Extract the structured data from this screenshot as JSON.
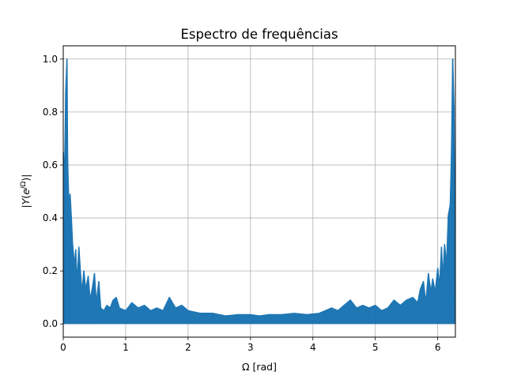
{
  "chart_data": {
    "type": "line",
    "title": "Espectro de frequências",
    "xlabel": "Ω [rad]",
    "ylabel": "|Y(e^{jΩ})|",
    "xlim": [
      0,
      6.283
    ],
    "ylim": [
      -0.05,
      1.05
    ],
    "x_ticks": [
      0,
      1,
      2,
      3,
      4,
      5,
      6
    ],
    "x_tick_labels": [
      "0",
      "1",
      "2",
      "3",
      "4",
      "5",
      "6"
    ],
    "y_ticks": [
      0.0,
      0.2,
      0.4,
      0.6,
      0.8,
      1.0
    ],
    "y_tick_labels": [
      "0.0",
      "0.2",
      "0.4",
      "0.6",
      "0.8",
      "1.0"
    ],
    "grid": true,
    "legend": "none",
    "colors": {
      "series": "#1f77b4",
      "grid": "#b0b0b0"
    },
    "series": [
      {
        "x": [
          0.0,
          0.02,
          0.04,
          0.06,
          0.07,
          0.09,
          0.11,
          0.13,
          0.15,
          0.18,
          0.2,
          0.22,
          0.25,
          0.28,
          0.3,
          0.33,
          0.36,
          0.4,
          0.43,
          0.47,
          0.5,
          0.53,
          0.57,
          0.6,
          0.65,
          0.7,
          0.75,
          0.8,
          0.85,
          0.9,
          1.0,
          1.1,
          1.2,
          1.3,
          1.4,
          1.5,
          1.6,
          1.7,
          1.8,
          1.9,
          2.0,
          2.2,
          2.4,
          2.6,
          2.8,
          3.0,
          3.142,
          3.3,
          3.5,
          3.7,
          3.9,
          4.1,
          4.2,
          4.3,
          4.4,
          4.5,
          4.6,
          4.7,
          4.8,
          4.9,
          5.0,
          5.1,
          5.2,
          5.3,
          5.4,
          5.5,
          5.6,
          5.68,
          5.72,
          5.77,
          5.81,
          5.85,
          5.89,
          5.92,
          5.96,
          6.0,
          6.03,
          6.06,
          6.08,
          6.11,
          6.14,
          6.17,
          6.2,
          6.22,
          6.24,
          6.26,
          6.283
        ],
        "y": [
          0.65,
          0.55,
          0.88,
          1.0,
          0.62,
          0.45,
          0.49,
          0.4,
          0.3,
          0.22,
          0.28,
          0.15,
          0.29,
          0.18,
          0.12,
          0.2,
          0.13,
          0.18,
          0.09,
          0.14,
          0.19,
          0.08,
          0.16,
          0.06,
          0.05,
          0.07,
          0.06,
          0.09,
          0.1,
          0.06,
          0.05,
          0.08,
          0.06,
          0.07,
          0.05,
          0.06,
          0.05,
          0.1,
          0.06,
          0.07,
          0.05,
          0.04,
          0.04,
          0.03,
          0.035,
          0.035,
          0.03,
          0.035,
          0.035,
          0.04,
          0.035,
          0.04,
          0.05,
          0.06,
          0.05,
          0.07,
          0.09,
          0.06,
          0.07,
          0.06,
          0.07,
          0.05,
          0.06,
          0.09,
          0.07,
          0.09,
          0.1,
          0.08,
          0.13,
          0.16,
          0.08,
          0.19,
          0.12,
          0.17,
          0.12,
          0.21,
          0.14,
          0.29,
          0.17,
          0.3,
          0.22,
          0.41,
          0.45,
          0.64,
          1.0,
          0.82,
          0.07
        ]
      }
    ]
  }
}
